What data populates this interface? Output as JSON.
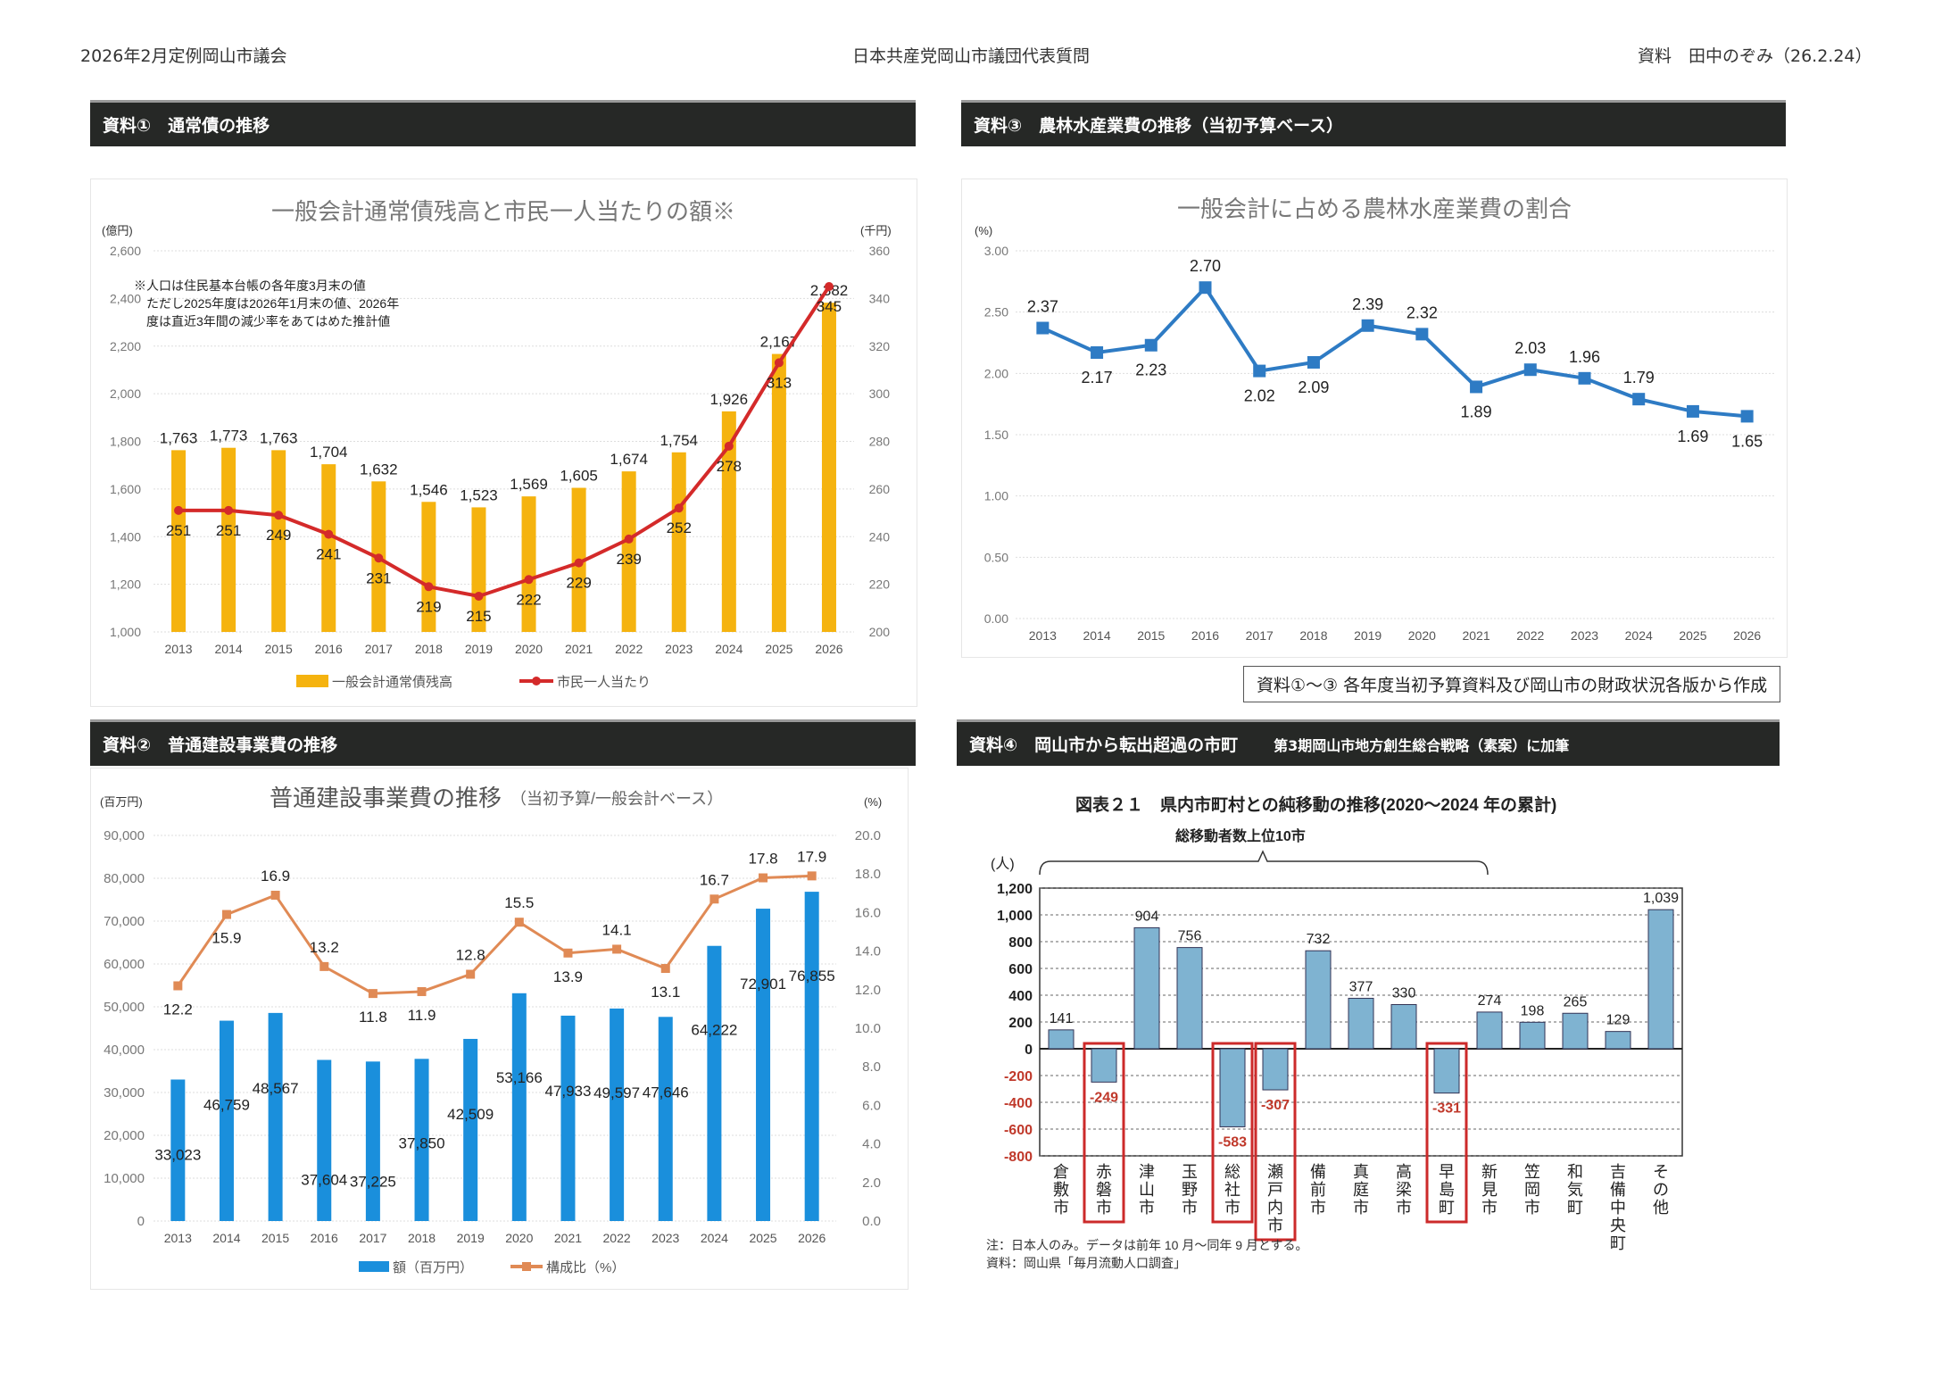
{
  "header": {
    "left": "2026年2月定例岡山市議会",
    "center": "日本共産党岡山市議団代表質問",
    "right": "資料　田中のぞみ（26.2.24）"
  },
  "panels": {
    "p1": {
      "title": "資料①　通常債の推移"
    },
    "p2": {
      "title": "資料②　普通建設事業費の推移"
    },
    "p3": {
      "title": "資料③　農林水産業費の推移（当初予算ベース）"
    },
    "p4": {
      "title": "資料④　岡山市から転出超過の市町",
      "subtitle": "第3期岡山市地方創生総合戦略（素案）に加筆"
    }
  },
  "source_note": "資料①～③ 各年度当初予算資料及び岡山市の財政状況各版から作成",
  "chart_data": [
    {
      "id": "debt",
      "type": "bar+line",
      "title": "一般会計通常債残高と市民一人当たりの額※",
      "ylabel": "(億円)",
      "y2label": "(千円)",
      "ylim": [
        1000,
        2600
      ],
      "y2lim": [
        200,
        360
      ],
      "yticks": [
        "1,000",
        "1,200",
        "1,400",
        "1,600",
        "1,800",
        "2,000",
        "2,200",
        "2,400",
        "2,600"
      ],
      "y2ticks": [
        "200",
        "220",
        "240",
        "260",
        "280",
        "300",
        "320",
        "340",
        "360"
      ],
      "categories": [
        "2013",
        "2014",
        "2015",
        "2016",
        "2017",
        "2018",
        "2019",
        "2020",
        "2021",
        "2022",
        "2023",
        "2024",
        "2025",
        "2026"
      ],
      "series": [
        {
          "name": "一般会計通常債残高",
          "type": "bar",
          "color": "#f5b30f",
          "values": [
            1763,
            1773,
            1763,
            1704,
            1632,
            1546,
            1523,
            1569,
            1605,
            1674,
            1754,
            1926,
            2167,
            2382
          ],
          "labels": [
            "1,763",
            "1,773",
            "1,763",
            "1,704",
            "1,632",
            "1,546",
            "1,523",
            "1,569",
            "1,605",
            "1,674",
            "1,754",
            "1,926",
            "2,167",
            "2,382"
          ]
        },
        {
          "name": "市民一人当たり",
          "type": "line",
          "axis": "right",
          "color": "#d42a2a",
          "values": [
            251,
            251,
            249,
            241,
            231,
            219,
            215,
            222,
            229,
            239,
            252,
            278,
            313,
            345
          ]
        }
      ],
      "annotation": [
        "※人口は住民基本台帳の各年度3月末の値",
        "ただし2025年度は2026年1月末の値、2026年",
        "度は直近3年間の減少率をあてはめた推計値"
      ],
      "grid": true,
      "legend": "bottom"
    },
    {
      "id": "agri",
      "type": "line",
      "title": "一般会計に占める農林水産業費の割合",
      "ylabel": "(%)",
      "ylim": [
        0,
        3
      ],
      "yticks": [
        "0.00",
        "0.50",
        "1.00",
        "1.50",
        "2.00",
        "2.50",
        "3.00"
      ],
      "categories": [
        "2013",
        "2014",
        "2015",
        "2016",
        "2017",
        "2018",
        "2019",
        "2020",
        "2021",
        "2022",
        "2023",
        "2024",
        "2025",
        "2026"
      ],
      "series": [
        {
          "name": "割合",
          "color": "#2e7bc4",
          "values": [
            2.37,
            2.17,
            2.23,
            2.7,
            2.02,
            2.09,
            2.39,
            2.32,
            1.89,
            2.03,
            1.96,
            1.79,
            1.69,
            1.65
          ],
          "labels": [
            "2.37",
            "2.17",
            "2.23",
            "2.70",
            "2.02",
            "2.09",
            "2.39",
            "2.32",
            "1.89",
            "2.03",
            "1.96",
            "1.79",
            "1.69",
            "1.65"
          ]
        }
      ],
      "grid": true
    },
    {
      "id": "construction",
      "type": "bar+line",
      "title": "普通建設事業費の推移",
      "title_sub": "（当初予算/一般会計ベース）",
      "ylabel": "(百万円)",
      "y2label": "(%)",
      "ylim": [
        0,
        90000
      ],
      "y2lim": [
        0,
        20
      ],
      "yticks": [
        "0",
        "10,000",
        "20,000",
        "30,000",
        "40,000",
        "50,000",
        "60,000",
        "70,000",
        "80,000",
        "90,000"
      ],
      "y2ticks": [
        "0.0",
        "2.0",
        "4.0",
        "6.0",
        "8.0",
        "10.0",
        "12.0",
        "14.0",
        "16.0",
        "18.0",
        "20.0"
      ],
      "categories": [
        "2013",
        "2014",
        "2015",
        "2016",
        "2017",
        "2018",
        "2019",
        "2020",
        "2021",
        "2022",
        "2023",
        "2024",
        "2025",
        "2026"
      ],
      "series": [
        {
          "name": "額（百万円）",
          "type": "bar",
          "color": "#1a8fdc",
          "values": [
            33023,
            46759,
            48567,
            37604,
            37225,
            37850,
            42509,
            53166,
            47933,
            49597,
            47646,
            64222,
            72901,
            76855
          ],
          "labels": [
            "33,023",
            "46,759",
            "48,567",
            "37,604",
            "37,225",
            "37,850",
            "42,509",
            "53,166",
            "47,933",
            "49,597",
            "47,646",
            "64,222",
            "72,901",
            "76,855"
          ]
        },
        {
          "name": "構成比（%）",
          "type": "line",
          "axis": "right",
          "color": "#e08a55",
          "values": [
            12.2,
            15.9,
            16.9,
            13.2,
            11.8,
            11.9,
            12.8,
            15.5,
            13.9,
            14.1,
            13.1,
            16.7,
            17.8,
            17.9
          ],
          "labels": [
            "12.2",
            "15.9",
            "16.9",
            "13.2",
            "11.8",
            "11.9",
            "12.8",
            "15.5",
            "13.9",
            "14.1",
            "13.1",
            "16.7",
            "17.8",
            "17.9"
          ]
        }
      ],
      "grid": true,
      "legend": "bottom"
    },
    {
      "id": "migration",
      "type": "bar",
      "title": "図表２１　県内市町村との純移動の推移(2020～2024 年の累計)",
      "bracket_label": "総移動者数上位10市",
      "ylabel": "(人)",
      "ylim": [
        -800,
        1200
      ],
      "yticks": [
        "-800",
        "-600",
        "-400",
        "-200",
        "0",
        "200",
        "400",
        "600",
        "800",
        "1,000",
        "1,200"
      ],
      "categories": [
        "倉敷市",
        "赤磐市",
        "津山市",
        "玉野市",
        "総社市",
        "瀬戸内市",
        "備前市",
        "真庭市",
        "高梁市",
        "早島町",
        "新見市",
        "笠岡市",
        "和気町",
        "吉備中央町",
        "その他"
      ],
      "values": [
        141,
        -249,
        904,
        756,
        -583,
        -307,
        732,
        377,
        330,
        -331,
        274,
        198,
        265,
        129,
        1039
      ],
      "labels": [
        "141",
        "-249",
        "904",
        "756",
        "-583",
        "-307",
        "732",
        "377",
        "330",
        "-331",
        "274",
        "198",
        "265",
        "129",
        "1,039"
      ],
      "highlighted": [
        "赤磐市",
        "総社市",
        "瀬戸内市",
        "早島町"
      ],
      "bar_color": "#7fb3d1",
      "highlight_color": "#cc2a2a",
      "negative_label_color": "#c0392b",
      "notes": [
        "注：日本人のみ。データは前年 10 月～同年 9 月とする。",
        "資料：岡山県「毎月流動人口調査」"
      ],
      "grid": true
    }
  ]
}
